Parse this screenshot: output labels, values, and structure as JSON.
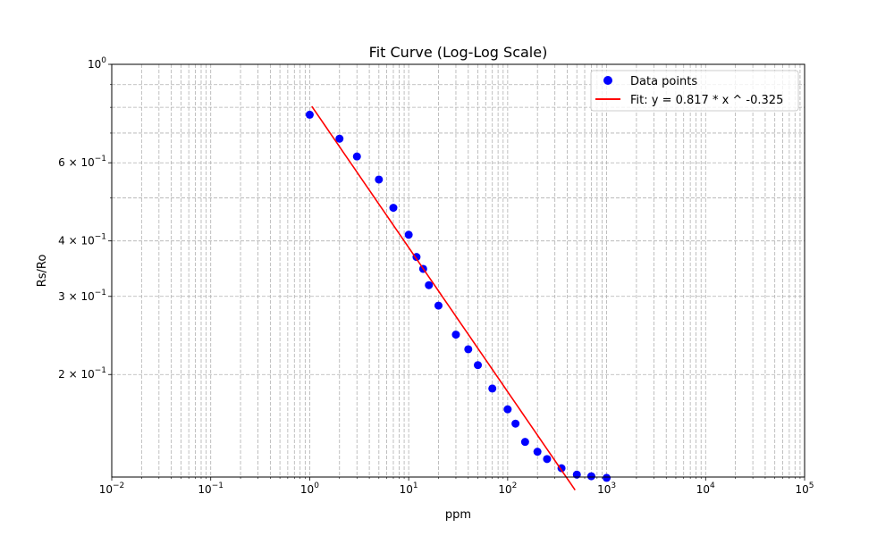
{
  "chart_data": {
    "type": "scatter",
    "title": "Fit Curve (Log-Log Scale)",
    "xlabel": "ppm",
    "ylabel": "Rs/Ro",
    "xscale": "log",
    "yscale": "log",
    "xlim": [
      0.01,
      100000
    ],
    "ylim": [
      0.1175,
      1.0
    ],
    "grid": true,
    "legend_position": "top-right",
    "x_ticks": [
      {
        "v": 0.01,
        "base": "10",
        "exp": "−2"
      },
      {
        "v": 0.1,
        "base": "10",
        "exp": "−1"
      },
      {
        "v": 1,
        "base": "10",
        "exp": "0"
      },
      {
        "v": 10,
        "base": "10",
        "exp": "1"
      },
      {
        "v": 100,
        "base": "10",
        "exp": "2"
      },
      {
        "v": 1000,
        "base": "10",
        "exp": "3"
      },
      {
        "v": 10000,
        "base": "10",
        "exp": "4"
      },
      {
        "v": 100000,
        "base": "10",
        "exp": "5"
      }
    ],
    "y_ticks": [
      {
        "v": 1.0,
        "base": "10",
        "exp": "0",
        "prefix": ""
      },
      {
        "v": 0.6,
        "base": "10",
        "exp": "−1",
        "prefix": "6 × "
      },
      {
        "v": 0.4,
        "base": "10",
        "exp": "−1",
        "prefix": "4 × "
      },
      {
        "v": 0.3,
        "base": "10",
        "exp": "−1",
        "prefix": "3 × "
      },
      {
        "v": 0.2,
        "base": "10",
        "exp": "−1",
        "prefix": "2 × "
      }
    ],
    "series": [
      {
        "name": "Data points",
        "kind": "scatter",
        "color": "#0000ff",
        "x": [
          1,
          2,
          3,
          5,
          7,
          10,
          12,
          14,
          16,
          20,
          30,
          40,
          50,
          70,
          100,
          120,
          150,
          200,
          250,
          350,
          500,
          700,
          1000
        ],
        "y": [
          0.77,
          0.68,
          0.62,
          0.55,
          0.475,
          0.413,
          0.368,
          0.346,
          0.318,
          0.286,
          0.246,
          0.228,
          0.21,
          0.186,
          0.167,
          0.155,
          0.141,
          0.134,
          0.129,
          0.123,
          0.119,
          0.118,
          0.117
        ]
      },
      {
        "name": "Fit: y = 0.817 * x ^ -0.325",
        "kind": "line",
        "color": "#ff0000",
        "coef": 0.817,
        "exponent": -0.325,
        "x_range": [
          1.05,
          480
        ]
      }
    ]
  }
}
